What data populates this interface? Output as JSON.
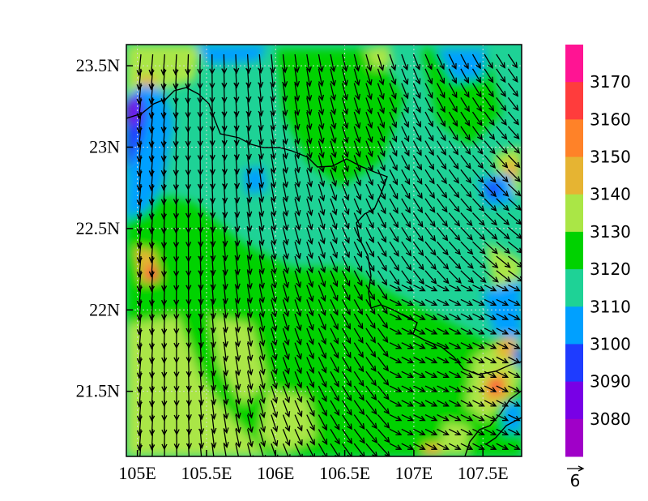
{
  "map": {
    "lon_ticks": [
      "105E",
      "105.5E",
      "106E",
      "106.5E",
      "107E",
      "107.5E"
    ],
    "lat_ticks": [
      "23.5N",
      "23N",
      "22.5N",
      "22N",
      "21.5N"
    ],
    "lon_values": [
      105,
      105.5,
      106,
      106.5,
      107,
      107.5
    ],
    "lat_values": [
      23.5,
      23,
      22.5,
      22,
      21.5
    ],
    "lon_range": [
      104.92,
      107.78
    ],
    "lat_range": [
      21.1,
      23.63
    ],
    "grid": true
  },
  "colorbar": {
    "levels": [
      "3170",
      "3160",
      "3150",
      "3140",
      "3130",
      "3120",
      "3110",
      "3100",
      "3090",
      "3080"
    ],
    "colors": [
      "#ff1493",
      "#ff3c3c",
      "#ff8228",
      "#e6b432",
      "#aae646",
      "#00d200",
      "#1ed296",
      "#00a0ff",
      "#1e3cff",
      "#7800e6",
      "#a000c8"
    ]
  },
  "vector_ref": {
    "magnitude": "6"
  },
  "field_colors": {
    "base": "#1ed296",
    "green": "#00d200",
    "yellowgreen": "#aae646",
    "orange": "#e6b432",
    "dark_orange": "#ff8228",
    "red": "#ff3c3c",
    "blue": "#00a0ff",
    "dark_blue": "#1e3cff",
    "purple": "#7800e6"
  }
}
